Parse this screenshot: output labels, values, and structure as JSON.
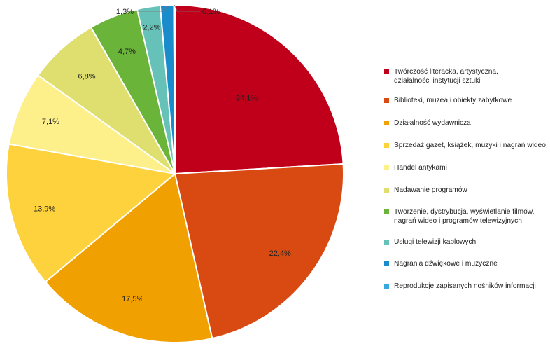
{
  "chart_data": {
    "type": "pie",
    "slices": [
      {
        "label": "Twórczość literacka, artystyczna,\ndziałalności instytucji sztuki",
        "value": 24.1,
        "display": "24,1%",
        "color": "#c0001a"
      },
      {
        "label": "Biblioteki, muzea i obiekty zabytkowe",
        "value": 22.4,
        "display": "22,4%",
        "color": "#d94a12"
      },
      {
        "label": "Działalność wydawnicza",
        "value": 17.5,
        "display": "17,5%",
        "color": "#f0a000"
      },
      {
        "label": "Sprzedaż gazet, książek, muzyki i nagrań wideo",
        "value": 13.9,
        "display": "13,9%",
        "color": "#fdd23c"
      },
      {
        "label": "Handel antykami",
        "value": 7.1,
        "display": "7,1%",
        "color": "#fdf08a"
      },
      {
        "label": "Nadawanie programów",
        "value": 6.8,
        "display": "6,8%",
        "color": "#dfdf70"
      },
      {
        "label": "Tworzenie, dystrybucja, wyświetlanie filmów,\nnagrań wideo i programów telewizyjnych",
        "value": 4.7,
        "display": "4,7%",
        "color": "#6ab43a"
      },
      {
        "label": "Usługi telewizji kablowych",
        "value": 2.2,
        "display": "2,2%",
        "color": "#66c2b8"
      },
      {
        "label": "Nagrania dźwiękowe i muzyczne",
        "value": 1.3,
        "display": "1,3%",
        "color": "#1a8ccc"
      },
      {
        "label": "Reprodukcje zapisanych nośników informacji",
        "value": 0.1,
        "display": "0,1%",
        "color": "#3aa8e0"
      }
    ],
    "legend_position": "right",
    "start_angle": "12 o'clock, clockwise"
  }
}
